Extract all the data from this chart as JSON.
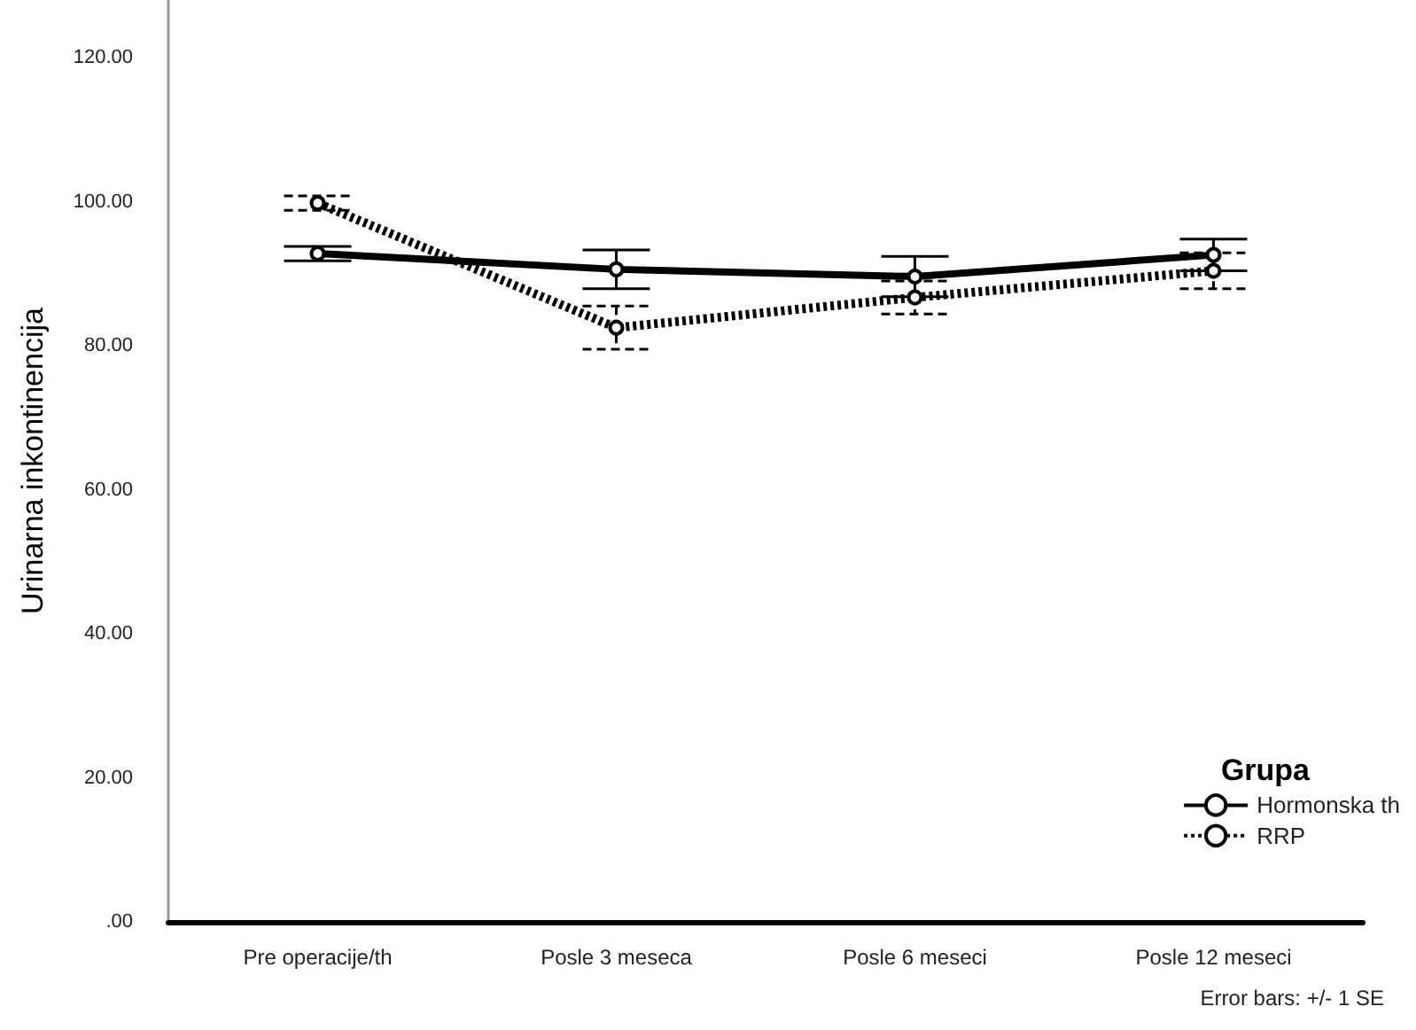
{
  "chart_data": {
    "type": "line",
    "ylabel": "Urinarna inkontinencija",
    "legend_title": "Grupa",
    "categories": [
      "Pre operacije/th",
      "Posle 3 meseca",
      "Posle 6 meseci",
      "Posle 12 meseci"
    ],
    "series": [
      {
        "name": "Hormonska th",
        "color": "#000000",
        "line_style": "solid",
        "values": [
          92.8,
          90.6,
          89.6,
          92.6
        ],
        "errors": [
          1.0,
          2.7,
          2.8,
          2.2
        ]
      },
      {
        "name": "RRP",
        "color": "#000000",
        "line_style": "dotted",
        "values": [
          99.8,
          82.5,
          86.7,
          90.4
        ],
        "errors": [
          1.0,
          3.0,
          2.3,
          2.5
        ]
      }
    ],
    "ylim": [
      0,
      128
    ],
    "yticks": [
      {
        "value": 0,
        "label": ".00"
      },
      {
        "value": 20,
        "label": "20.00"
      },
      {
        "value": 40,
        "label": "40.00"
      },
      {
        "value": 60,
        "label": "60.00"
      },
      {
        "value": 80,
        "label": "80.00"
      },
      {
        "value": 100,
        "label": "100.00"
      },
      {
        "value": 120,
        "label": "120.00"
      }
    ],
    "grid": false,
    "legend": "bottom right",
    "marker": "circle",
    "annotations": [
      "Error bars: +/- 1 SE"
    ]
  }
}
